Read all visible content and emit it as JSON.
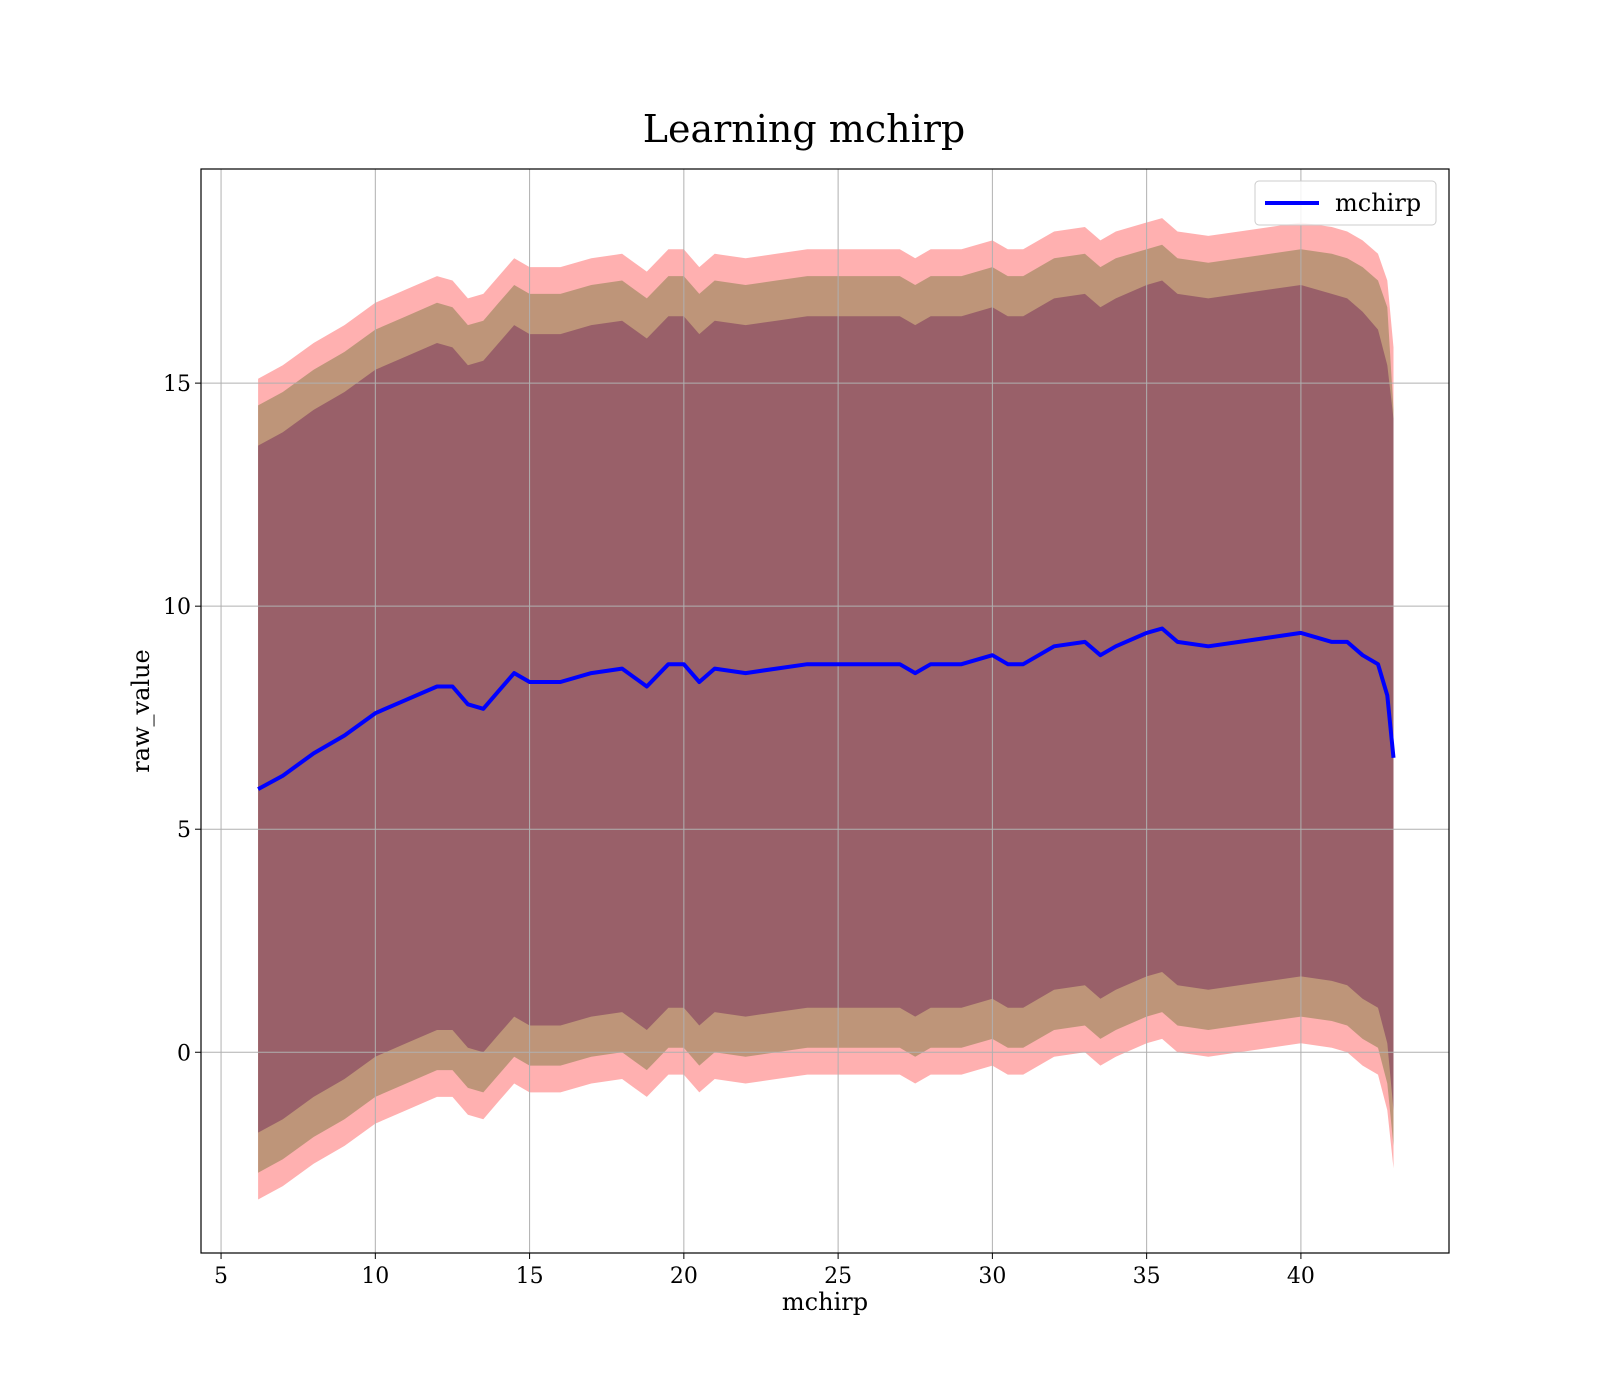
{
  "chart_data": {
    "type": "area",
    "title": "Learning mchirp",
    "xlabel": "mchirp",
    "ylabel": "raw_value",
    "xlim": [
      4.35,
      44.8
    ],
    "ylim": [
      -4.5,
      19.8
    ],
    "xticks": [
      5,
      10,
      15,
      20,
      25,
      30,
      35,
      40
    ],
    "yticks": [
      0,
      5,
      10,
      15
    ],
    "grid": true,
    "legend": {
      "placement": "top-right",
      "entries": [
        "mchirp"
      ]
    },
    "colors": {
      "mean_line": "#0000ff",
      "outer_band": "#ff8080",
      "middle_band": "#b39070",
      "inner_band": "#8b4c63"
    },
    "x": [
      6.2,
      7,
      8,
      9,
      10,
      11,
      12,
      12.5,
      13,
      13.5,
      14,
      14.5,
      15,
      16,
      17,
      18,
      18.8,
      19.5,
      20,
      20.5,
      21,
      22,
      23,
      24,
      25,
      26,
      27,
      27.5,
      28,
      29,
      30,
      30.5,
      31,
      32,
      33,
      33.5,
      34,
      35,
      35.5,
      36,
      37,
      38,
      39,
      40,
      41,
      41.5,
      42,
      42.5,
      42.8,
      43
    ],
    "series": [
      {
        "name": "mchirp",
        "values": [
          5.9,
          6.2,
          6.7,
          7.1,
          7.6,
          7.9,
          8.2,
          8.2,
          7.8,
          7.7,
          8.1,
          8.5,
          8.3,
          8.3,
          8.5,
          8.6,
          8.2,
          8.7,
          8.7,
          8.3,
          8.6,
          8.5,
          8.6,
          8.7,
          8.7,
          8.7,
          8.7,
          8.5,
          8.7,
          8.7,
          8.9,
          8.7,
          8.7,
          9.1,
          9.2,
          8.9,
          9.1,
          9.4,
          9.5,
          9.2,
          9.1,
          9.2,
          9.3,
          9.4,
          9.2,
          9.2,
          8.9,
          8.7,
          8.0,
          6.6
        ]
      }
    ],
    "bands": [
      {
        "role": "outer",
        "upper": [
          15.1,
          15.4,
          15.9,
          16.3,
          16.8,
          17.1,
          17.4,
          17.3,
          16.9,
          17.0,
          17.4,
          17.8,
          17.6,
          17.6,
          17.8,
          17.9,
          17.5,
          18.0,
          18.0,
          17.6,
          17.9,
          17.8,
          17.9,
          18.0,
          18.0,
          18.0,
          18.0,
          17.8,
          18.0,
          18.0,
          18.2,
          18.0,
          18.0,
          18.4,
          18.5,
          18.2,
          18.4,
          18.6,
          18.7,
          18.4,
          18.3,
          18.4,
          18.5,
          18.6,
          18.5,
          18.4,
          18.2,
          17.9,
          17.3,
          15.8
        ],
        "lower": [
          -3.3,
          -3.0,
          -2.5,
          -2.1,
          -1.6,
          -1.3,
          -1.0,
          -1.0,
          -1.4,
          -1.5,
          -1.1,
          -0.7,
          -0.9,
          -0.9,
          -0.7,
          -0.6,
          -1.0,
          -0.5,
          -0.5,
          -0.9,
          -0.6,
          -0.7,
          -0.6,
          -0.5,
          -0.5,
          -0.5,
          -0.5,
          -0.7,
          -0.5,
          -0.5,
          -0.3,
          -0.5,
          -0.5,
          -0.1,
          0.0,
          -0.3,
          -0.1,
          0.2,
          0.3,
          0.0,
          -0.1,
          0.0,
          0.1,
          0.2,
          0.1,
          0.0,
          -0.3,
          -0.5,
          -1.3,
          -2.6
        ]
      },
      {
        "role": "middle",
        "upper": [
          14.5,
          14.8,
          15.3,
          15.7,
          16.2,
          16.5,
          16.8,
          16.7,
          16.3,
          16.4,
          16.8,
          17.2,
          17.0,
          17.0,
          17.2,
          17.3,
          16.9,
          17.4,
          17.4,
          17.0,
          17.3,
          17.2,
          17.3,
          17.4,
          17.4,
          17.4,
          17.4,
          17.2,
          17.4,
          17.4,
          17.6,
          17.4,
          17.4,
          17.8,
          17.9,
          17.6,
          17.8,
          18.0,
          18.1,
          17.8,
          17.7,
          17.8,
          17.9,
          18.0,
          17.9,
          17.8,
          17.6,
          17.3,
          16.7,
          14.4
        ],
        "lower": [
          -2.7,
          -2.4,
          -1.9,
          -1.5,
          -1.0,
          -0.7,
          -0.4,
          -0.4,
          -0.8,
          -0.9,
          -0.5,
          -0.1,
          -0.3,
          -0.3,
          -0.1,
          0.0,
          -0.4,
          0.1,
          0.1,
          -0.3,
          0.0,
          -0.1,
          0.0,
          0.1,
          0.1,
          0.1,
          0.1,
          -0.1,
          0.1,
          0.1,
          0.3,
          0.1,
          0.1,
          0.5,
          0.6,
          0.3,
          0.5,
          0.8,
          0.9,
          0.6,
          0.5,
          0.6,
          0.7,
          0.8,
          0.7,
          0.6,
          0.3,
          0.1,
          -0.7,
          -2.1
        ]
      },
      {
        "role": "inner",
        "upper": [
          13.6,
          13.9,
          14.4,
          14.8,
          15.3,
          15.6,
          15.9,
          15.8,
          15.4,
          15.5,
          15.9,
          16.3,
          16.1,
          16.1,
          16.3,
          16.4,
          16.0,
          16.5,
          16.5,
          16.1,
          16.4,
          16.3,
          16.4,
          16.5,
          16.5,
          16.5,
          16.5,
          16.3,
          16.5,
          16.5,
          16.7,
          16.5,
          16.5,
          16.9,
          17.0,
          16.7,
          16.9,
          17.2,
          17.3,
          17.0,
          16.9,
          17.0,
          17.1,
          17.2,
          17.0,
          16.9,
          16.6,
          16.2,
          15.4,
          14.2
        ],
        "lower": [
          -1.8,
          -1.5,
          -1.0,
          -0.6,
          -0.1,
          0.2,
          0.5,
          0.5,
          0.1,
          0.0,
          0.4,
          0.8,
          0.6,
          0.6,
          0.8,
          0.9,
          0.5,
          1.0,
          1.0,
          0.6,
          0.9,
          0.8,
          0.9,
          1.0,
          1.0,
          1.0,
          1.0,
          0.8,
          1.0,
          1.0,
          1.2,
          1.0,
          1.0,
          1.4,
          1.5,
          1.2,
          1.4,
          1.7,
          1.8,
          1.5,
          1.4,
          1.5,
          1.6,
          1.7,
          1.6,
          1.5,
          1.2,
          1.0,
          0.2,
          -1.3
        ]
      }
    ]
  }
}
